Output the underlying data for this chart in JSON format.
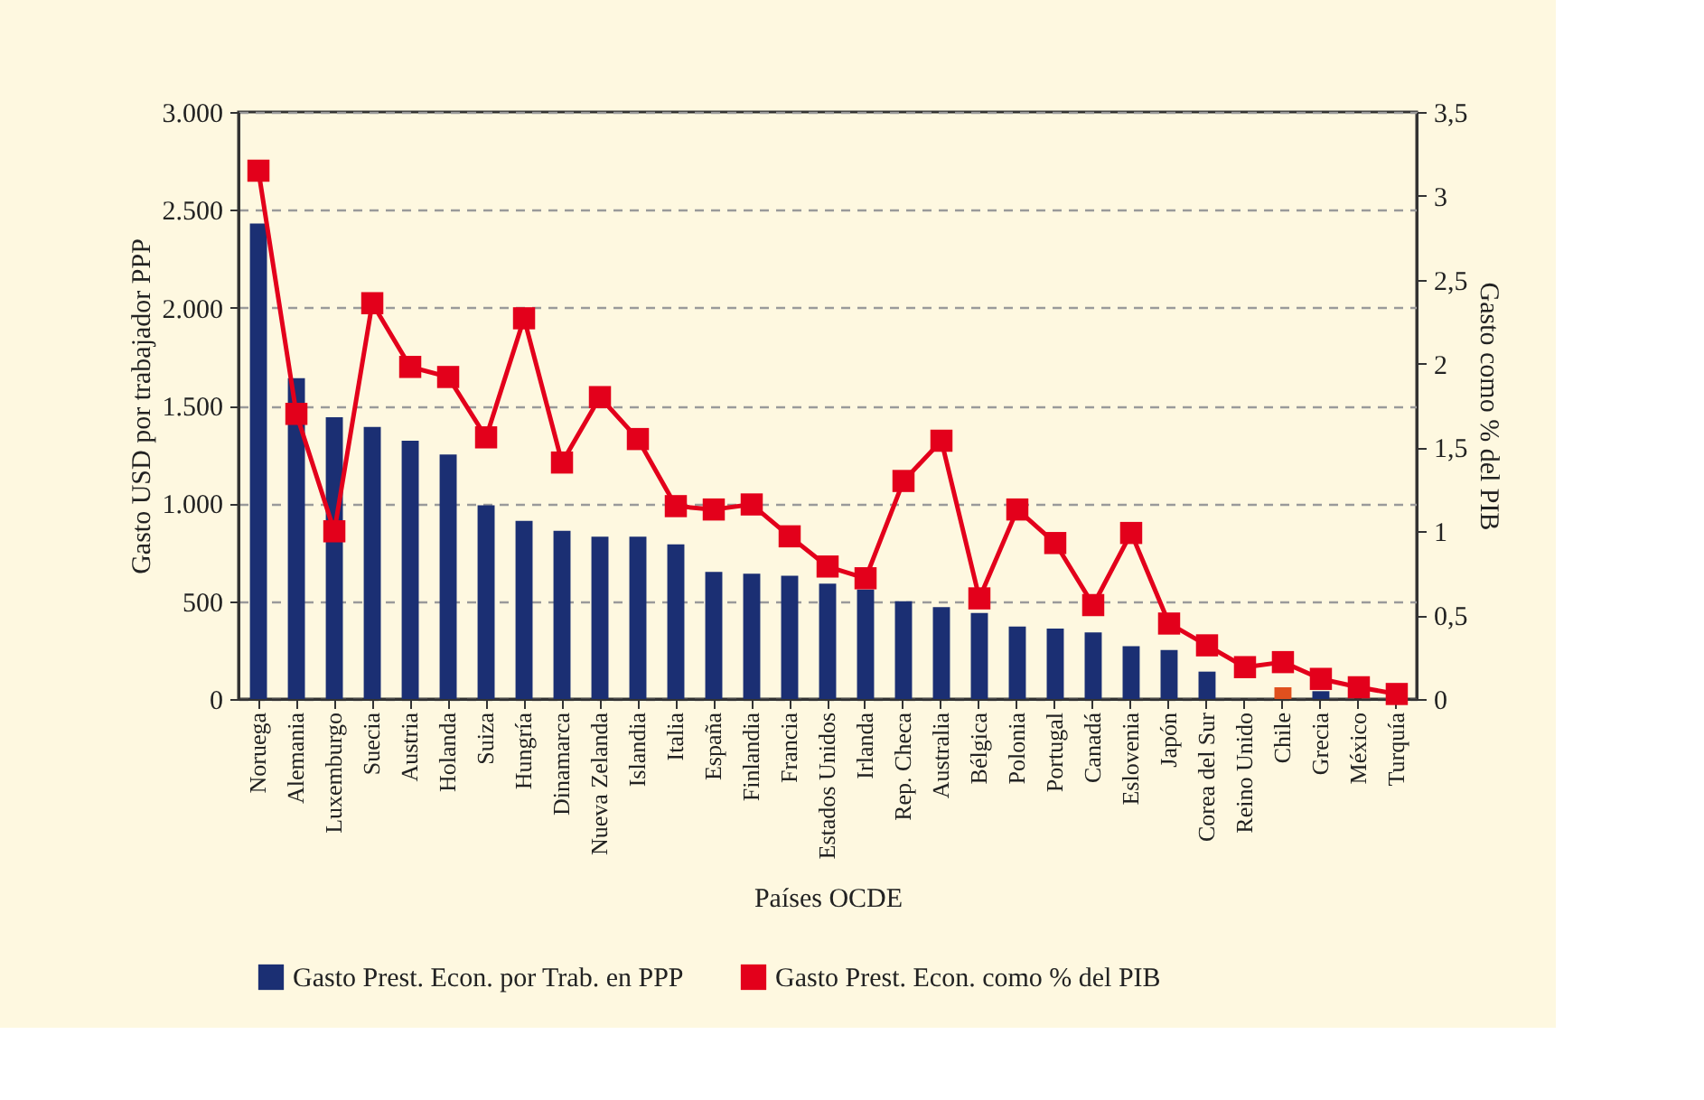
{
  "chart_data": {
    "type": "bar",
    "xlabel": "Países OCDE",
    "ylabel": "Gasto USD  por trabajador PPP",
    "y2label": "Gasto como % del PIB",
    "categories": [
      "Noruega",
      "Alemania",
      "Luxemburgo",
      "Suecia",
      "Austria",
      "Holanda",
      "Suiza",
      "Hungría",
      "Dinamarca",
      "Nueva Zelanda",
      "Islandia",
      "Italia",
      "España",
      "Finlandia",
      "Francia",
      "Estados Unidos",
      "Irlanda",
      "Rep. Checa",
      "Australia",
      "Bélgica",
      "Polonia",
      "Portugal",
      "Canadá",
      "Eslovenia",
      "Japón",
      "Corea del Sur",
      "Reino Unido",
      "Chile",
      "Grecia",
      "México",
      "Turquía"
    ],
    "series": [
      {
        "name": "Gasto Prest. Econ. por Trab. en PPP",
        "color": "#1b2f73",
        "colors": [
          "#1b2f73",
          "#1b2f73",
          "#1b2f73",
          "#1b2f73",
          "#1b2f73",
          "#1b2f73",
          "#1b2f73",
          "#1b2f73",
          "#1b2f73",
          "#1b2f73",
          "#1b2f73",
          "#1b2f73",
          "#1b2f73",
          "#1b2f73",
          "#1b2f73",
          "#1b2f73",
          "#1b2f73",
          "#1b2f73",
          "#1b2f73",
          "#1b2f73",
          "#1b2f73",
          "#1b2f73",
          "#1b2f73",
          "#1b2f73",
          "#1b2f73",
          "#1b2f73",
          "#1b2f73",
          "#e0501e",
          "#1b2f73",
          "#1b2f73",
          "#1b2f73"
        ],
        "values": [
          2430,
          1640,
          1440,
          1390,
          1320,
          1250,
          990,
          910,
          860,
          830,
          830,
          790,
          650,
          640,
          630,
          590,
          560,
          500,
          470,
          440,
          370,
          360,
          340,
          270,
          250,
          140,
          null,
          60,
          40,
          null,
          null
        ]
      },
      {
        "name": "Gasto Prest. Econ. como % del PIB",
        "type": "line",
        "axis": "y2",
        "color": "#e3001b",
        "marker": "square",
        "values": [
          3.15,
          1.7,
          1.0,
          2.36,
          1.98,
          1.92,
          1.56,
          2.27,
          1.41,
          1.8,
          1.55,
          1.15,
          1.13,
          1.16,
          0.97,
          0.79,
          0.72,
          1.3,
          1.54,
          0.6,
          1.13,
          0.93,
          0.56,
          0.99,
          0.45,
          0.32,
          0.19,
          0.22,
          0.12,
          0.07,
          0.03
        ]
      }
    ],
    "ylim": [
      0,
      3000
    ],
    "yticks": [
      {
        "value": 0,
        "label": "0"
      },
      {
        "value": 500,
        "label": "500"
      },
      {
        "value": 1000,
        "label": "1.000"
      },
      {
        "value": 1500,
        "label": "1.500"
      },
      {
        "value": 2000,
        "label": "2.000"
      },
      {
        "value": 2500,
        "label": "2.500"
      },
      {
        "value": 3000,
        "label": "3.000"
      }
    ],
    "y2lim": [
      0,
      3.5
    ],
    "y2ticks": [
      0,
      {
        "value": 0.5,
        "label": "0,5"
      },
      1,
      {
        "value": 1.5,
        "label": "1,5"
      },
      2,
      {
        "value": 2.5,
        "label": "2,5"
      },
      3,
      {
        "value": 3.5,
        "label": "3,5"
      }
    ],
    "grid": "y",
    "legend": "bottom"
  }
}
